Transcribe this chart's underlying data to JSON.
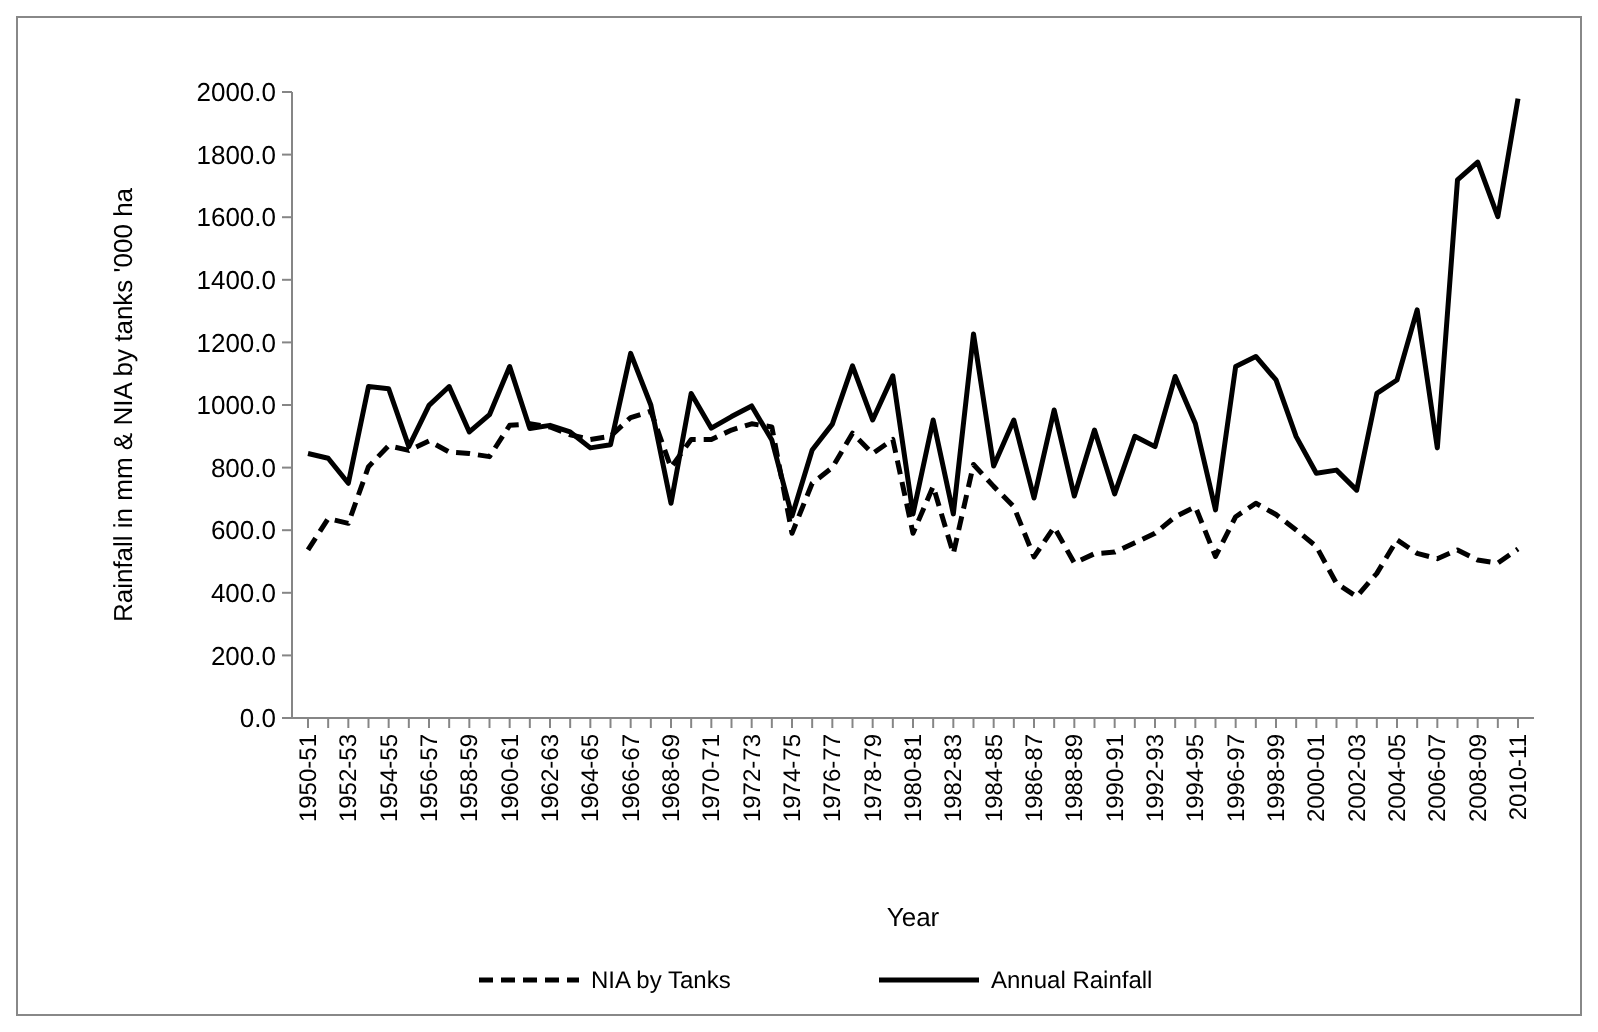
{
  "chart_data": {
    "type": "line",
    "xlabel": "Year",
    "ylabel": "Rainfall in mm & NIA by tanks '000 ha",
    "categories": [
      "1950-51",
      null,
      "1952-53",
      null,
      "1954-55",
      null,
      "1956-57",
      null,
      "1958-59",
      null,
      "1960-61",
      null,
      "1962-63",
      null,
      "1964-65",
      null,
      "1966-67",
      null,
      "1968-69",
      null,
      "1970-71",
      null,
      "1972-73",
      null,
      "1974-75",
      null,
      "1976-77",
      null,
      "1978-79",
      null,
      "1980-81",
      null,
      "1982-83",
      null,
      "1984-85",
      null,
      "1986-87",
      null,
      "1988-89",
      null,
      "1990-91",
      null,
      "1992-93",
      null,
      "1994-95",
      null,
      "1996-97",
      null,
      "1998-99",
      null,
      "2000-01",
      null,
      "2002-03",
      null,
      "2004-05",
      null,
      "2006-07",
      null,
      "2008-09",
      null,
      "2010-11"
    ],
    "ylim": [
      0,
      2000
    ],
    "yticks": [
      {
        "value": 0,
        "label": "0.0"
      },
      {
        "value": 200,
        "label": "200.0"
      },
      {
        "value": 400,
        "label": "400.0"
      },
      {
        "value": 600,
        "label": "600.0"
      },
      {
        "value": 800,
        "label": "800.0"
      },
      {
        "value": 1000,
        "label": "1000.0"
      },
      {
        "value": 1200,
        "label": "1200.0"
      },
      {
        "value": 1400,
        "label": "1400.0"
      },
      {
        "value": 1600,
        "label": "1600.0"
      },
      {
        "value": 1800,
        "label": "1800.0"
      },
      {
        "value": 2000,
        "label": "2000.0"
      }
    ],
    "grid": false,
    "legend": "bottom",
    "marker": "none",
    "series": [
      {
        "name": "NIA by Tanks",
        "color": "#000000",
        "line_style": "dashed",
        "values": [
          537,
          637,
          622,
          803,
          870,
          855,
          885,
          850,
          845,
          835,
          935,
          940,
          930,
          905,
          890,
          900,
          960,
          980,
          800,
          890,
          890,
          920,
          940,
          930,
          590,
          750,
          800,
          910,
          845,
          890,
          590,
          740,
          525,
          810,
          740,
          675,
          515,
          610,
          495,
          525,
          530,
          560,
          590,
          643,
          675,
          516,
          643,
          686,
          650,
          601,
          548,
          430,
          388,
          462,
          569,
          526,
          509,
          537,
          505,
          495,
          540
        ]
      },
      {
        "name": "Annual Rainfall",
        "color": "#000000",
        "line_style": "solid",
        "values": [
          845,
          830,
          750,
          1059,
          1052,
          867,
          999,
          1059,
          914,
          969,
          1123,
          925,
          935,
          914,
          863,
          873,
          1165,
          1000,
          686,
          1037,
          926,
          963,
          997,
          888,
          645,
          856,
          939,
          1125,
          952,
          1093,
          652,
          952,
          652,
          1227,
          805,
          952,
          703,
          984,
          709,
          920,
          716,
          900,
          867,
          1091,
          941,
          665,
          1123,
          1155,
          1080,
          899,
          782,
          792,
          728,
          1037,
          1080,
          1304,
          863,
          1719,
          1776,
          1602,
          1979
        ]
      }
    ]
  }
}
